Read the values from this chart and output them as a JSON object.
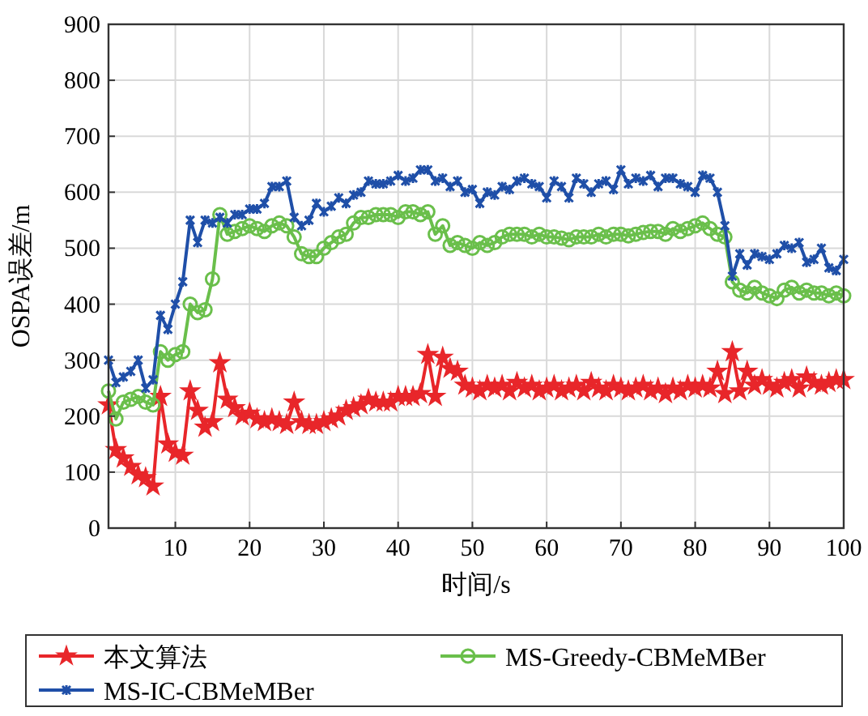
{
  "chart_data": {
    "type": "line",
    "xlabel": "时间/s",
    "ylabel": "OSPA误差/m",
    "x": [
      1,
      2,
      3,
      4,
      5,
      6,
      7,
      8,
      9,
      10,
      11,
      12,
      13,
      14,
      15,
      16,
      17,
      18,
      19,
      20,
      21,
      22,
      23,
      24,
      25,
      26,
      27,
      28,
      29,
      30,
      31,
      32,
      33,
      34,
      35,
      36,
      37,
      38,
      39,
      40,
      41,
      42,
      43,
      44,
      45,
      46,
      47,
      48,
      49,
      50,
      51,
      52,
      53,
      54,
      55,
      56,
      57,
      58,
      59,
      60,
      61,
      62,
      63,
      64,
      65,
      66,
      67,
      68,
      69,
      70,
      71,
      72,
      73,
      74,
      75,
      76,
      77,
      78,
      79,
      80,
      81,
      82,
      83,
      84,
      85,
      86,
      87,
      88,
      89,
      90,
      91,
      92,
      93,
      94,
      95,
      96,
      97,
      98,
      99,
      100
    ],
    "series": [
      {
        "name": "本文算法",
        "color": "#e8262a",
        "marker": "star",
        "values": [
          220,
          140,
          125,
          110,
          95,
          90,
          75,
          235,
          150,
          135,
          130,
          245,
          210,
          180,
          190,
          295,
          230,
          215,
          200,
          205,
          195,
          190,
          195,
          190,
          185,
          225,
          190,
          185,
          185,
          190,
          195,
          200,
          210,
          215,
          220,
          230,
          225,
          225,
          225,
          235,
          235,
          235,
          240,
          310,
          235,
          305,
          285,
          280,
          255,
          250,
          245,
          255,
          250,
          255,
          245,
          260,
          250,
          255,
          245,
          250,
          255,
          245,
          250,
          255,
          245,
          260,
          250,
          245,
          255,
          250,
          245,
          250,
          255,
          245,
          250,
          240,
          250,
          245,
          255,
          250,
          255,
          250,
          280,
          240,
          315,
          245,
          280,
          255,
          265,
          255,
          250,
          260,
          265,
          250,
          270,
          260,
          255,
          260,
          265,
          265
        ]
      },
      {
        "name": "MS-Greedy-CBMeMBer",
        "color": "#6abf4b",
        "marker": "circle",
        "values": [
          245,
          195,
          225,
          230,
          235,
          225,
          220,
          315,
          300,
          310,
          315,
          400,
          385,
          390,
          445,
          560,
          525,
          530,
          535,
          540,
          535,
          530,
          540,
          545,
          540,
          520,
          490,
          485,
          485,
          500,
          510,
          520,
          525,
          545,
          555,
          555,
          560,
          560,
          560,
          555,
          565,
          565,
          560,
          565,
          525,
          540,
          505,
          510,
          505,
          500,
          510,
          505,
          510,
          520,
          525,
          525,
          525,
          520,
          525,
          520,
          520,
          518,
          515,
          520,
          520,
          520,
          525,
          520,
          525,
          525,
          522,
          525,
          528,
          530,
          530,
          525,
          535,
          530,
          535,
          540,
          545,
          535,
          525,
          520,
          440,
          425,
          420,
          430,
          420,
          415,
          410,
          425,
          430,
          420,
          425,
          420,
          420,
          415,
          420,
          415
        ]
      },
      {
        "name": "MS-IC-CBMeMBer",
        "color": "#1f4fa8",
        "marker": "cross",
        "values": [
          300,
          260,
          270,
          280,
          300,
          250,
          265,
          380,
          355,
          400,
          440,
          550,
          510,
          550,
          545,
          555,
          545,
          560,
          560,
          570,
          570,
          580,
          610,
          610,
          620,
          555,
          540,
          550,
          580,
          565,
          575,
          590,
          580,
          595,
          600,
          620,
          615,
          615,
          620,
          630,
          620,
          625,
          640,
          640,
          620,
          625,
          610,
          620,
          600,
          605,
          580,
          600,
          595,
          610,
          605,
          620,
          625,
          615,
          610,
          590,
          620,
          610,
          590,
          625,
          615,
          600,
          615,
          620,
          605,
          640,
          615,
          625,
          620,
          630,
          610,
          625,
          625,
          615,
          610,
          600,
          630,
          625,
          600,
          540,
          450,
          490,
          470,
          490,
          485,
          480,
          490,
          505,
          500,
          510,
          475,
          480,
          500,
          465,
          460,
          480
        ]
      }
    ],
    "xlim": [
      1,
      100
    ],
    "xticks": [
      10,
      20,
      30,
      40,
      50,
      60,
      70,
      80,
      90,
      100
    ],
    "ylim": [
      0,
      900
    ],
    "yticks": [
      0,
      100,
      200,
      300,
      400,
      500,
      600,
      700,
      800,
      900
    ],
    "grid": true,
    "legend": "bottom",
    "line_style": "solid"
  }
}
